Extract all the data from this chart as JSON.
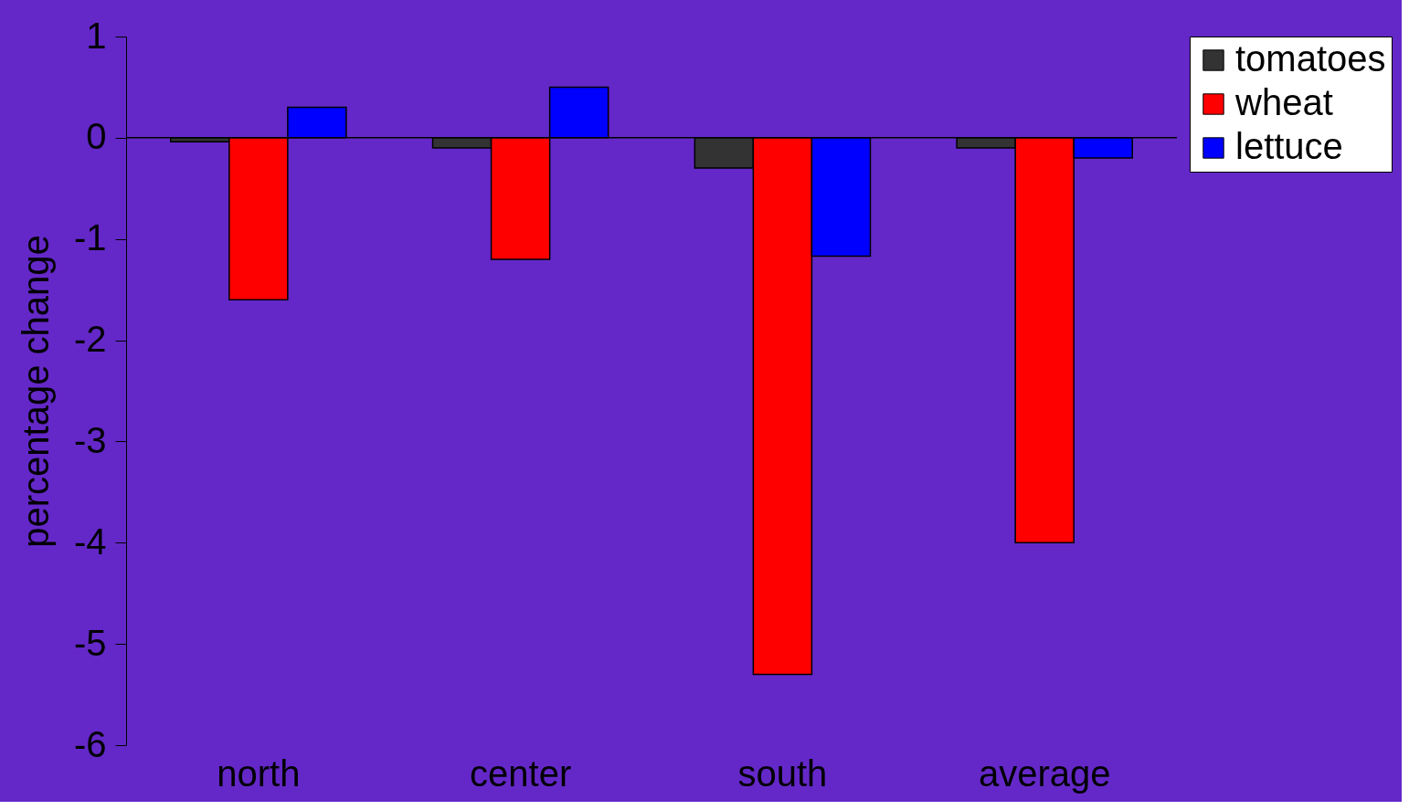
{
  "chart_data": {
    "type": "bar",
    "ylabel": "percentage change",
    "categories": [
      "north",
      "center",
      "south",
      "average"
    ],
    "series": [
      {
        "name": "tomatoes",
        "color": "#333333",
        "values": [
          -0.04,
          -0.1,
          -0.3,
          -0.1
        ]
      },
      {
        "name": "wheat",
        "color": "#ff0000",
        "values": [
          -1.6,
          -1.2,
          -5.3,
          -4.0
        ]
      },
      {
        "name": "lettuce",
        "color": "#0000ff",
        "values": [
          0.3,
          0.5,
          -1.17,
          -0.2
        ]
      }
    ],
    "ylim": [
      -6,
      1
    ],
    "yticks": [
      -6,
      -5,
      -4,
      -3,
      -2,
      -1,
      0,
      1
    ],
    "ref_lines": [
      {
        "axis": "y",
        "value": 0,
        "color": "#000000"
      }
    ],
    "grid": false,
    "legend": "right"
  }
}
